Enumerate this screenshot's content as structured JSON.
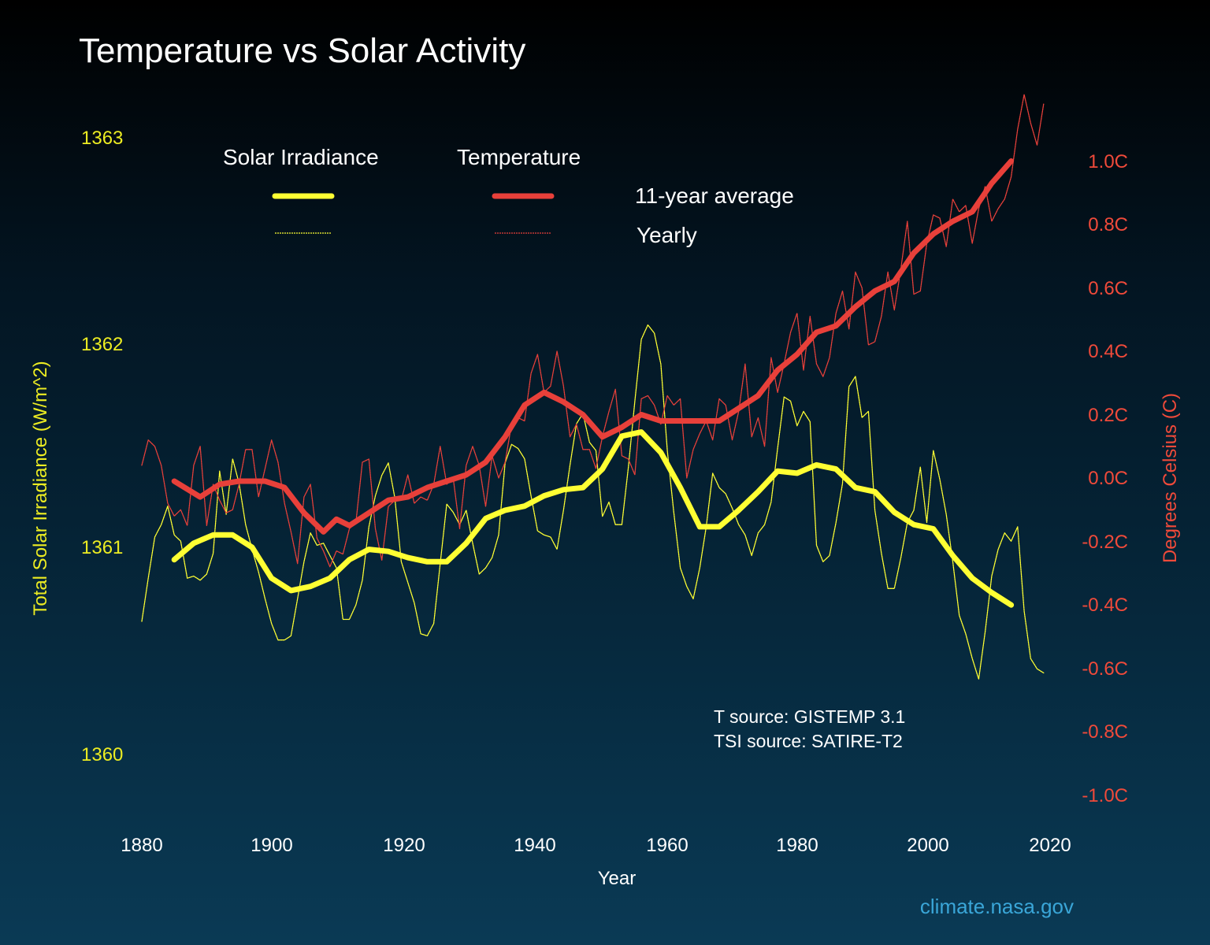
{
  "chart_data": {
    "type": "line",
    "title": "Temperature vs Solar Activity",
    "xlabel": "Year",
    "ylabel_left": "Total Solar Irradiance (W/m^2)",
    "ylabel_right": "Degrees Celsius (C)",
    "xlim": [
      1880,
      2020
    ],
    "ylim_left": [
      1360,
      1363
    ],
    "ylim_right": [
      -1.0,
      1.0
    ],
    "x_ticks": [
      "1880",
      "1900",
      "1920",
      "1940",
      "1960",
      "1980",
      "2000",
      "2020"
    ],
    "left_ticks": [
      "1363",
      "1362",
      "1361",
      "1360"
    ],
    "right_ticks": [
      "1.0C",
      "0.8C",
      "0.6C",
      "0.4C",
      "0.2C",
      "0.0C",
      "-0.2C",
      "-0.4C",
      "-0.6C",
      "-0.8C",
      "-1.0C"
    ],
    "grid": false,
    "legend": {
      "position": "top",
      "group_solar": "Solar Irradiance",
      "group_temp": "Temperature",
      "row_avg": "11-year average",
      "row_yearly": "Yearly"
    },
    "annotations": {
      "t_source": "T source: GISTEMP 3.1",
      "tsi_source": "TSI source: SATIRE-T2"
    },
    "colors": {
      "solar": "#ffff33",
      "temperature": "#e8403a"
    },
    "series": [
      {
        "name": "Solar Irradiance Yearly",
        "axis": "left",
        "style": "thin",
        "x_start": 1880,
        "values": [
          1360.64,
          1360.85,
          1361.05,
          1361.11,
          1361.2,
          1361.06,
          1361.03,
          1360.85,
          1360.86,
          1360.84,
          1360.87,
          1360.97,
          1361.37,
          1361.16,
          1361.43,
          1361.31,
          1361.11,
          1360.99,
          1360.88,
          1360.75,
          1360.63,
          1360.55,
          1360.55,
          1360.57,
          1360.75,
          1360.93,
          1361.07,
          1361.01,
          1361.02,
          1360.96,
          1360.9,
          1360.65,
          1360.65,
          1360.72,
          1360.84,
          1361.1,
          1361.25,
          1361.35,
          1361.41,
          1361.24,
          1360.93,
          1360.83,
          1360.73,
          1360.58,
          1360.57,
          1360.63,
          1360.92,
          1361.21,
          1361.17,
          1361.11,
          1361.18,
          1361.02,
          1360.87,
          1360.9,
          1360.95,
          1361.06,
          1361.41,
          1361.5,
          1361.48,
          1361.43,
          1361.25,
          1361.08,
          1361.06,
          1361.05,
          1360.99,
          1361.18,
          1361.4,
          1361.6,
          1361.65,
          1361.51,
          1361.47,
          1361.15,
          1361.22,
          1361.11,
          1361.11,
          1361.39,
          1361.71,
          1362.01,
          1362.08,
          1362.04,
          1361.89,
          1361.47,
          1361.17,
          1360.9,
          1360.81,
          1360.75,
          1360.9,
          1361.1,
          1361.36,
          1361.29,
          1361.26,
          1361.19,
          1361.11,
          1361.06,
          1360.96,
          1361.07,
          1361.11,
          1361.22,
          1361.48,
          1361.73,
          1361.71,
          1361.59,
          1361.66,
          1361.61,
          1361.01,
          1360.93,
          1360.96,
          1361.12,
          1361.31,
          1361.78,
          1361.83,
          1361.63,
          1361.66,
          1361.18,
          1360.97,
          1360.8,
          1360.8,
          1360.95,
          1361.12,
          1361.18,
          1361.39,
          1361.12,
          1361.47,
          1361.33,
          1361.16,
          1360.93,
          1360.67,
          1360.58,
          1360.46,
          1360.36,
          1360.59,
          1360.86,
          1360.99,
          1361.07,
          1361.03,
          1361.1,
          1360.69,
          1360.46,
          1360.41,
          1360.39
        ]
      },
      {
        "name": "Solar Irradiance 11-year average",
        "axis": "left",
        "style": "thick",
        "x": [
          1885,
          1888,
          1891,
          1894,
          1897,
          1900,
          1903,
          1906,
          1909,
          1912,
          1915,
          1918,
          1921,
          1924,
          1927,
          1930,
          1933,
          1936,
          1939,
          1942,
          1945,
          1948,
          1951,
          1954,
          1957,
          1960,
          1963,
          1966,
          1969,
          1972,
          1975,
          1978,
          1981,
          1984,
          1987,
          1990,
          1993,
          1996,
          1999,
          2002,
          2005,
          2008,
          2011,
          2014
        ],
        "values": [
          1360.94,
          1361.02,
          1361.06,
          1361.06,
          1361.0,
          1360.85,
          1360.79,
          1360.81,
          1360.85,
          1360.94,
          1360.99,
          1360.98,
          1360.95,
          1360.93,
          1360.93,
          1361.02,
          1361.14,
          1361.18,
          1361.2,
          1361.25,
          1361.28,
          1361.29,
          1361.38,
          1361.54,
          1361.56,
          1361.46,
          1361.29,
          1361.1,
          1361.1,
          1361.18,
          1361.27,
          1361.37,
          1361.36,
          1361.4,
          1361.38,
          1361.29,
          1361.27,
          1361.17,
          1361.11,
          1361.09,
          1360.96,
          1360.85,
          1360.78,
          1360.72
        ]
      },
      {
        "name": "Temperature Yearly",
        "axis": "right",
        "style": "thin",
        "x_start": 1880,
        "values": [
          0.04,
          0.12,
          0.1,
          0.04,
          -0.08,
          -0.12,
          -0.1,
          -0.15,
          0.04,
          0.1,
          -0.15,
          -0.02,
          -0.07,
          -0.11,
          -0.1,
          -0.02,
          0.09,
          0.09,
          -0.06,
          0.03,
          0.12,
          0.05,
          -0.08,
          -0.17,
          -0.27,
          -0.06,
          -0.02,
          -0.19,
          -0.23,
          -0.28,
          -0.23,
          -0.24,
          -0.16,
          -0.14,
          0.05,
          0.06,
          -0.16,
          -0.26,
          -0.09,
          -0.07,
          -0.07,
          0.01,
          -0.08,
          -0.06,
          -0.07,
          -0.02,
          0.1,
          -0.02,
          0.0,
          -0.16,
          0.04,
          0.1,
          0.04,
          -0.09,
          0.07,
          0.0,
          0.05,
          0.17,
          0.19,
          0.18,
          0.33,
          0.39,
          0.27,
          0.29,
          0.4,
          0.29,
          0.13,
          0.17,
          0.09,
          0.09,
          0.03,
          0.13,
          0.21,
          0.28,
          0.07,
          0.06,
          0.01,
          0.25,
          0.26,
          0.23,
          0.17,
          0.26,
          0.23,
          0.25,
          0.0,
          0.09,
          0.14,
          0.18,
          0.12,
          0.25,
          0.23,
          0.12,
          0.21,
          0.36,
          0.13,
          0.19,
          0.1,
          0.38,
          0.27,
          0.36,
          0.46,
          0.52,
          0.34,
          0.51,
          0.36,
          0.32,
          0.38,
          0.52,
          0.59,
          0.47,
          0.65,
          0.6,
          0.42,
          0.43,
          0.51,
          0.65,
          0.53,
          0.66,
          0.81,
          0.58,
          0.59,
          0.74,
          0.83,
          0.82,
          0.73,
          0.88,
          0.84,
          0.86,
          0.74,
          0.85,
          0.92,
          0.81,
          0.85,
          0.88,
          0.95,
          1.1,
          1.21,
          1.12,
          1.05,
          1.18
        ]
      },
      {
        "name": "Temperature 11-year average",
        "axis": "right",
        "style": "thick",
        "x": [
          1885,
          1889,
          1892,
          1895,
          1899,
          1902,
          1905,
          1908,
          1910,
          1912,
          1915,
          1918,
          1921,
          1924,
          1927,
          1930,
          1933,
          1936,
          1939,
          1942,
          1945,
          1948,
          1951,
          1954,
          1957,
          1960,
          1963,
          1966,
          1969,
          1972,
          1975,
          1978,
          1981,
          1984,
          1987,
          1990,
          1993,
          1996,
          1999,
          2002,
          2005,
          2008,
          2011,
          2014
        ],
        "values": [
          -0.01,
          -0.06,
          -0.02,
          -0.01,
          -0.01,
          -0.03,
          -0.11,
          -0.17,
          -0.13,
          -0.15,
          -0.11,
          -0.07,
          -0.06,
          -0.03,
          -0.01,
          0.01,
          0.05,
          0.13,
          0.23,
          0.27,
          0.24,
          0.2,
          0.13,
          0.16,
          0.2,
          0.18,
          0.18,
          0.18,
          0.18,
          0.22,
          0.26,
          0.34,
          0.39,
          0.46,
          0.48,
          0.54,
          0.59,
          0.62,
          0.71,
          0.77,
          0.81,
          0.84,
          0.93,
          1.0
        ]
      }
    ]
  },
  "credit": "climate.nasa.gov"
}
